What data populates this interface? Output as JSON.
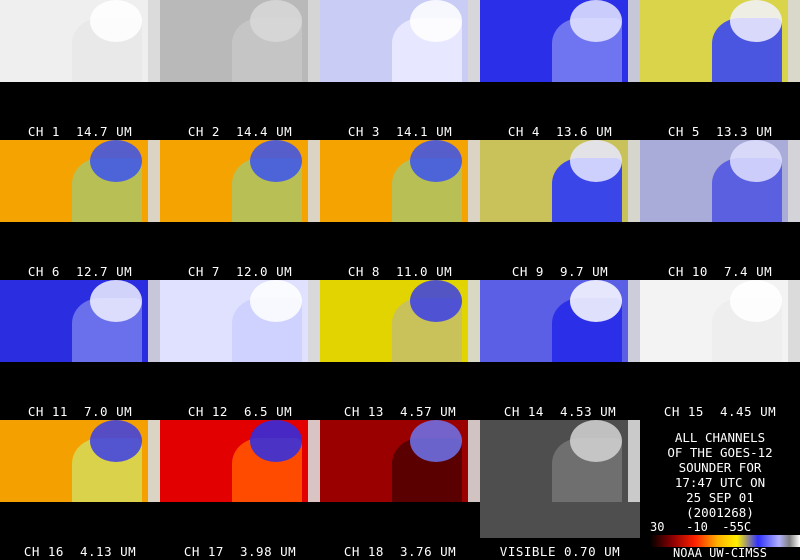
{
  "channels": [
    {
      "label": "CH 1  14.7 UM",
      "style": "map"
    },
    {
      "label": "CH 2  14.4 UM",
      "style": "gray"
    },
    {
      "label": "CH 3  14.1 UM",
      "style": "lightblue"
    },
    {
      "label": "CH 4  13.6 UM",
      "style": "blue"
    },
    {
      "label": "CH 5  13.3 UM",
      "style": "yellowblue"
    },
    {
      "label": "CH 6  12.7 UM",
      "style": "warm"
    },
    {
      "label": "CH 7  12.0 UM",
      "style": "warm"
    },
    {
      "label": "CH 8  11.0 UM",
      "style": "warm"
    },
    {
      "label": "CH 9  9.7 UM",
      "style": "blue2"
    },
    {
      "label": "CH 10  7.4 UM",
      "style": "bluegray"
    },
    {
      "label": "CH 11  7.0 UM",
      "style": "deepblue"
    },
    {
      "label": "CH 12  6.5 UM",
      "style": "pale"
    },
    {
      "label": "CH 13  4.57 UM",
      "style": "yellow"
    },
    {
      "label": "CH 14  4.53 UM",
      "style": "blue3"
    },
    {
      "label": "CH 15  4.45 UM",
      "style": "white"
    },
    {
      "label": "CH 16  4.13 UM",
      "style": "warm2"
    },
    {
      "label": "CH 17  3.98 UM",
      "style": "red"
    },
    {
      "label": "CH 18  3.76 UM",
      "style": "darkred"
    },
    {
      "label": "VISIBLE 0.70 UM",
      "style": "visible"
    }
  ],
  "info": {
    "text": "ALL CHANNELS\nOF THE GOES-12\nSOUNDER FOR\n17:47 UTC ON\n25 SEP 01\n(2001268)",
    "colorbar_labels": "30   -10  -55C",
    "credit": "NOAA UW-CIMSS"
  },
  "palette": {
    "warm": "#f5a000",
    "blue": "#2b2ee6",
    "yellow": "#e6d600",
    "red": "#e60000",
    "pale": "#dde0ff",
    "gray": "#b0b0b0"
  }
}
